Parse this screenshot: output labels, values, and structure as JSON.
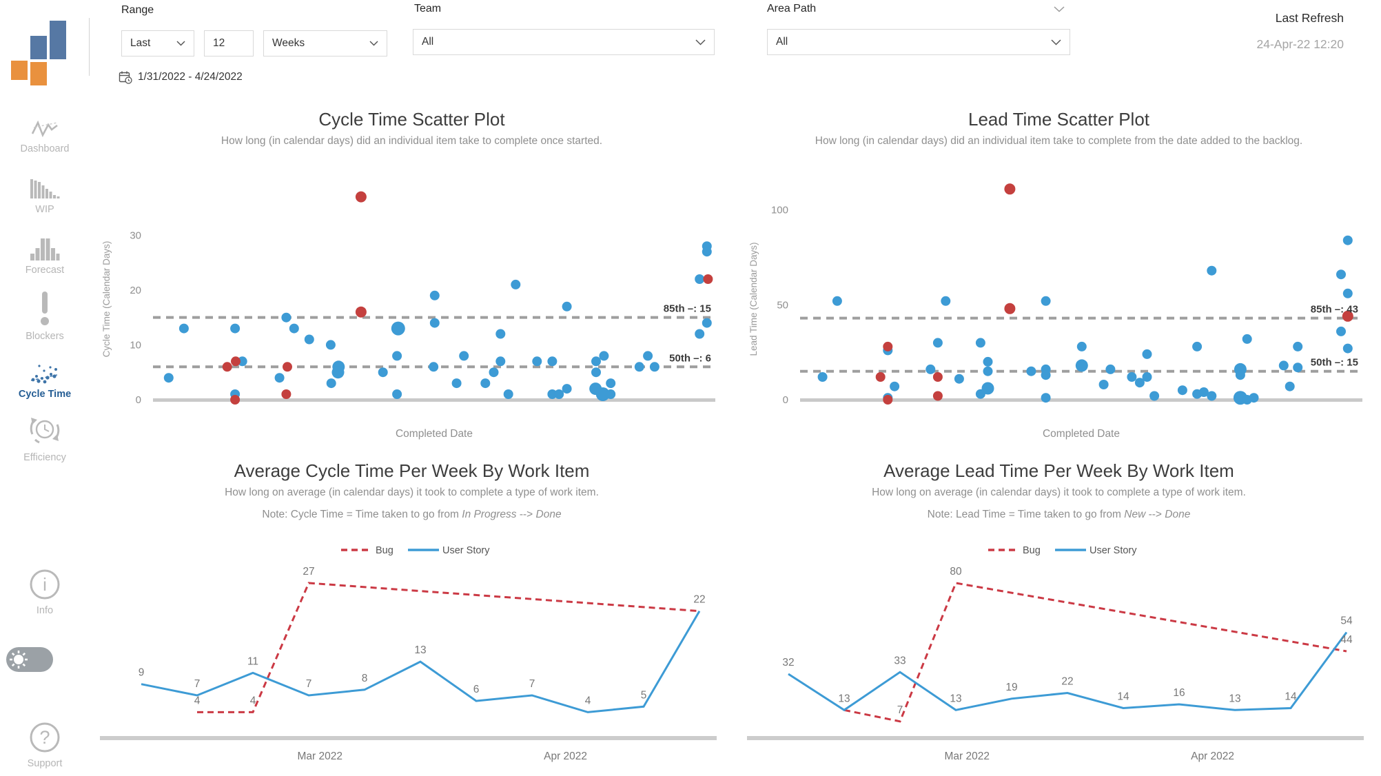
{
  "header": {
    "range_label": "Range",
    "range_mode": "Last",
    "range_value": "12",
    "range_unit": "Weeks",
    "date_range": "1/31/2022 - 4/24/2022",
    "team_label": "Team",
    "team_value": "All",
    "area_path_label": "Area Path",
    "area_path_value": "All",
    "last_refresh_label": "Last Refresh",
    "last_refresh_value": "24-Apr-22 12:20"
  },
  "sidebar": {
    "items": [
      {
        "label": "Dashboard",
        "icon": "line-chart-icon",
        "active": false
      },
      {
        "label": "WIP",
        "icon": "bar-chart-icon",
        "active": false
      },
      {
        "label": "Forecast",
        "icon": "histogram-icon",
        "active": false
      },
      {
        "label": "Blockers",
        "icon": "exclamation-icon",
        "active": false
      },
      {
        "label": "Cycle Time",
        "icon": "scatter-icon",
        "active": true
      },
      {
        "label": "Efficiency",
        "icon": "cycle-clock-icon",
        "active": false
      }
    ],
    "bottom_items": [
      {
        "label": "Info",
        "icon": "info-icon"
      },
      {
        "label": "Support",
        "icon": "question-icon"
      }
    ]
  },
  "colors": {
    "user_story_blue": "#3D9BD5",
    "bug_red": "#C4403E",
    "bug_line_red": "#CB3944",
    "active_nav_blue": "#245D94",
    "logo_orange": "#E9913E",
    "logo_blue": "#5678A4",
    "percentile_gray": "#9E9E9E"
  },
  "chart_data": [
    {
      "type": "scatter",
      "title": "Cycle Time Scatter Plot",
      "subtitle": "How long (in calendar days) did an individual item take to complete once started.",
      "xlabel": "Completed Date",
      "ylabel": "Cycle Time (Calendar Days)",
      "yticks": [
        0,
        10,
        20,
        30
      ],
      "ylim": [
        0,
        45
      ],
      "grid": false,
      "percentiles": [
        {
          "label": "85th –: 15",
          "value": 15
        },
        {
          "label": "50th –: 6",
          "value": 6
        }
      ],
      "series": [
        {
          "name": "User Story",
          "color": "#3D9BD5",
          "points": [
            [
              0.028,
              4
            ],
            [
              0.055,
              13
            ],
            [
              0.146,
              13
            ],
            [
              0.159,
              7
            ],
            [
              0.146,
              1
            ],
            [
              0.225,
              4
            ],
            [
              0.237,
              15
            ],
            [
              0.251,
              13
            ],
            [
              0.278,
              11
            ],
            [
              0.316,
              10
            ],
            [
              0.317,
              3
            ],
            [
              0.33,
              6,
              9
            ],
            [
              0.329,
              5,
              9
            ],
            [
              0.409,
              5
            ],
            [
              0.434,
              8
            ],
            [
              0.434,
              1
            ],
            [
              0.436,
              13,
              10
            ],
            [
              0.499,
              6
            ],
            [
              0.501,
              19
            ],
            [
              0.501,
              14
            ],
            [
              0.54,
              3
            ],
            [
              0.553,
              8
            ],
            [
              0.591,
              3
            ],
            [
              0.606,
              5
            ],
            [
              0.618,
              12
            ],
            [
              0.618,
              7
            ],
            [
              0.632,
              1
            ],
            [
              0.645,
              21
            ],
            [
              0.683,
              7
            ],
            [
              0.71,
              7
            ],
            [
              0.71,
              1
            ],
            [
              0.722,
              1
            ],
            [
              0.736,
              17
            ],
            [
              0.736,
              2
            ],
            [
              0.787,
              2,
              9
            ],
            [
              0.788,
              7
            ],
            [
              0.788,
              5
            ],
            [
              0.8,
              1,
              10
            ],
            [
              0.802,
              8
            ],
            [
              0.814,
              3
            ],
            [
              0.814,
              1
            ],
            [
              0.865,
              6
            ],
            [
              0.88,
              8
            ],
            [
              0.892,
              6
            ],
            [
              0.972,
              22
            ],
            [
              0.972,
              12
            ],
            [
              0.985,
              28
            ],
            [
              0.985,
              27
            ],
            [
              0.985,
              14
            ]
          ]
        },
        {
          "name": "Bug",
          "color": "#C4403E",
          "points": [
            [
              0.132,
              6
            ],
            [
              0.147,
              7
            ],
            [
              0.146,
              0
            ],
            [
              0.237,
              1
            ],
            [
              0.239,
              6
            ],
            [
              0.37,
              37,
              8
            ],
            [
              0.37,
              16,
              8
            ],
            [
              0.987,
              22
            ]
          ]
        }
      ]
    },
    {
      "type": "scatter",
      "title": "Lead Time Scatter Plot",
      "subtitle": "How long (in calendar days) did an individual item take to complete from the date added to the backlog.",
      "xlabel": "Completed Date",
      "ylabel": "Lead Time (Calendar Days)",
      "yticks": [
        0,
        50,
        100
      ],
      "ylim": [
        0,
        130
      ],
      "grid": false,
      "percentiles": [
        {
          "label": "85th –: 43",
          "value": 43
        },
        {
          "label": "50th –: 15",
          "value": 15
        }
      ],
      "series": [
        {
          "name": "User Story",
          "color": "#3D9BD5",
          "points": [
            [
              0.04,
              12
            ],
            [
              0.066,
              52
            ],
            [
              0.156,
              26
            ],
            [
              0.156,
              1
            ],
            [
              0.168,
              7
            ],
            [
              0.232,
              16
            ],
            [
              0.245,
              30
            ],
            [
              0.259,
              52
            ],
            [
              0.283,
              11
            ],
            [
              0.321,
              30
            ],
            [
              0.321,
              3
            ],
            [
              0.334,
              20
            ],
            [
              0.334,
              15
            ],
            [
              0.334,
              6,
              9
            ],
            [
              0.411,
              15
            ],
            [
              0.437,
              52
            ],
            [
              0.437,
              16
            ],
            [
              0.437,
              13
            ],
            [
              0.437,
              1
            ],
            [
              0.501,
              28
            ],
            [
              0.501,
              18,
              9
            ],
            [
              0.54,
              8
            ],
            [
              0.552,
              16
            ],
            [
              0.59,
              12
            ],
            [
              0.604,
              9
            ],
            [
              0.617,
              24
            ],
            [
              0.617,
              12
            ],
            [
              0.63,
              2
            ],
            [
              0.68,
              5
            ],
            [
              0.706,
              28
            ],
            [
              0.706,
              3
            ],
            [
              0.718,
              4
            ],
            [
              0.732,
              68
            ],
            [
              0.732,
              2
            ],
            [
              0.783,
              16,
              9
            ],
            [
              0.783,
              13
            ],
            [
              0.783,
              1,
              10
            ],
            [
              0.795,
              32
            ],
            [
              0.795,
              0
            ],
            [
              0.807,
              1
            ],
            [
              0.86,
              18
            ],
            [
              0.871,
              7
            ],
            [
              0.885,
              28
            ],
            [
              0.885,
              17
            ],
            [
              0.962,
              66
            ],
            [
              0.962,
              36
            ],
            [
              0.974,
              84
            ],
            [
              0.974,
              56
            ],
            [
              0.974,
              27
            ]
          ]
        },
        {
          "name": "Bug",
          "color": "#C4403E",
          "points": [
            [
              0.143,
              12
            ],
            [
              0.156,
              28
            ],
            [
              0.156,
              0
            ],
            [
              0.245,
              12
            ],
            [
              0.245,
              2
            ],
            [
              0.373,
              111,
              8
            ],
            [
              0.373,
              48,
              8
            ],
            [
              0.974,
              44,
              8
            ]
          ]
        }
      ]
    },
    {
      "type": "line",
      "title": "Average Cycle Time Per Week By Work Item",
      "subtitle": "How long on average (in calendar days) it took to complete a type of work item.",
      "note": {
        "prefix": "Note: Cycle Time = Time taken to go from",
        "from": "In Progress",
        "arrow": "-->",
        "to": "Done"
      },
      "x_month_labels": [
        {
          "label": "Mar 2022",
          "pos": 0.32
        },
        {
          "label": "Apr 2022",
          "pos": 0.76
        }
      ],
      "ymax": 27,
      "legend_position": "top-center",
      "series": [
        {
          "name": "Bug",
          "dashed": true,
          "color": "#CB3944",
          "points": [
            [
              1,
              4
            ],
            [
              2,
              4
            ],
            [
              3,
              27
            ],
            [
              10,
              22
            ]
          ]
        },
        {
          "name": "User Story",
          "dashed": false,
          "color": "#3D9BD5",
          "points": [
            [
              0,
              9
            ],
            [
              1,
              7
            ],
            [
              2,
              11
            ],
            [
              3,
              7
            ],
            [
              4,
              8
            ],
            [
              5,
              13
            ],
            [
              6,
              6
            ],
            [
              7,
              7
            ],
            [
              8,
              4
            ],
            [
              9,
              5
            ],
            [
              10,
              22,
              1
            ]
          ]
        }
      ]
    },
    {
      "type": "line",
      "title": "Average Lead Time Per Week By Work Item",
      "subtitle": "How long on average (in calendar days) it took to complete a type of work item.",
      "note": {
        "prefix": "Note: Lead Time = Time taken to go from",
        "from": "New",
        "arrow": "-->",
        "to": "Done"
      },
      "x_month_labels": [
        {
          "label": "Mar 2022",
          "pos": 0.32
        },
        {
          "label": "Apr 2022",
          "pos": 0.76
        }
      ],
      "ymax": 80,
      "legend_position": "top-center",
      "series": [
        {
          "name": "Bug",
          "dashed": true,
          "color": "#CB3944",
          "points": [
            [
              1,
              13,
              1
            ],
            [
              2,
              7
            ],
            [
              3,
              80
            ],
            [
              10,
              44
            ]
          ]
        },
        {
          "name": "User Story",
          "dashed": false,
          "color": "#3D9BD5",
          "points": [
            [
              0,
              32
            ],
            [
              1,
              13
            ],
            [
              2,
              33
            ],
            [
              3,
              13
            ],
            [
              4,
              19
            ],
            [
              5,
              22
            ],
            [
              6,
              14
            ],
            [
              7,
              16
            ],
            [
              8,
              13
            ],
            [
              9,
              14
            ],
            [
              10,
              54
            ]
          ]
        }
      ]
    }
  ]
}
